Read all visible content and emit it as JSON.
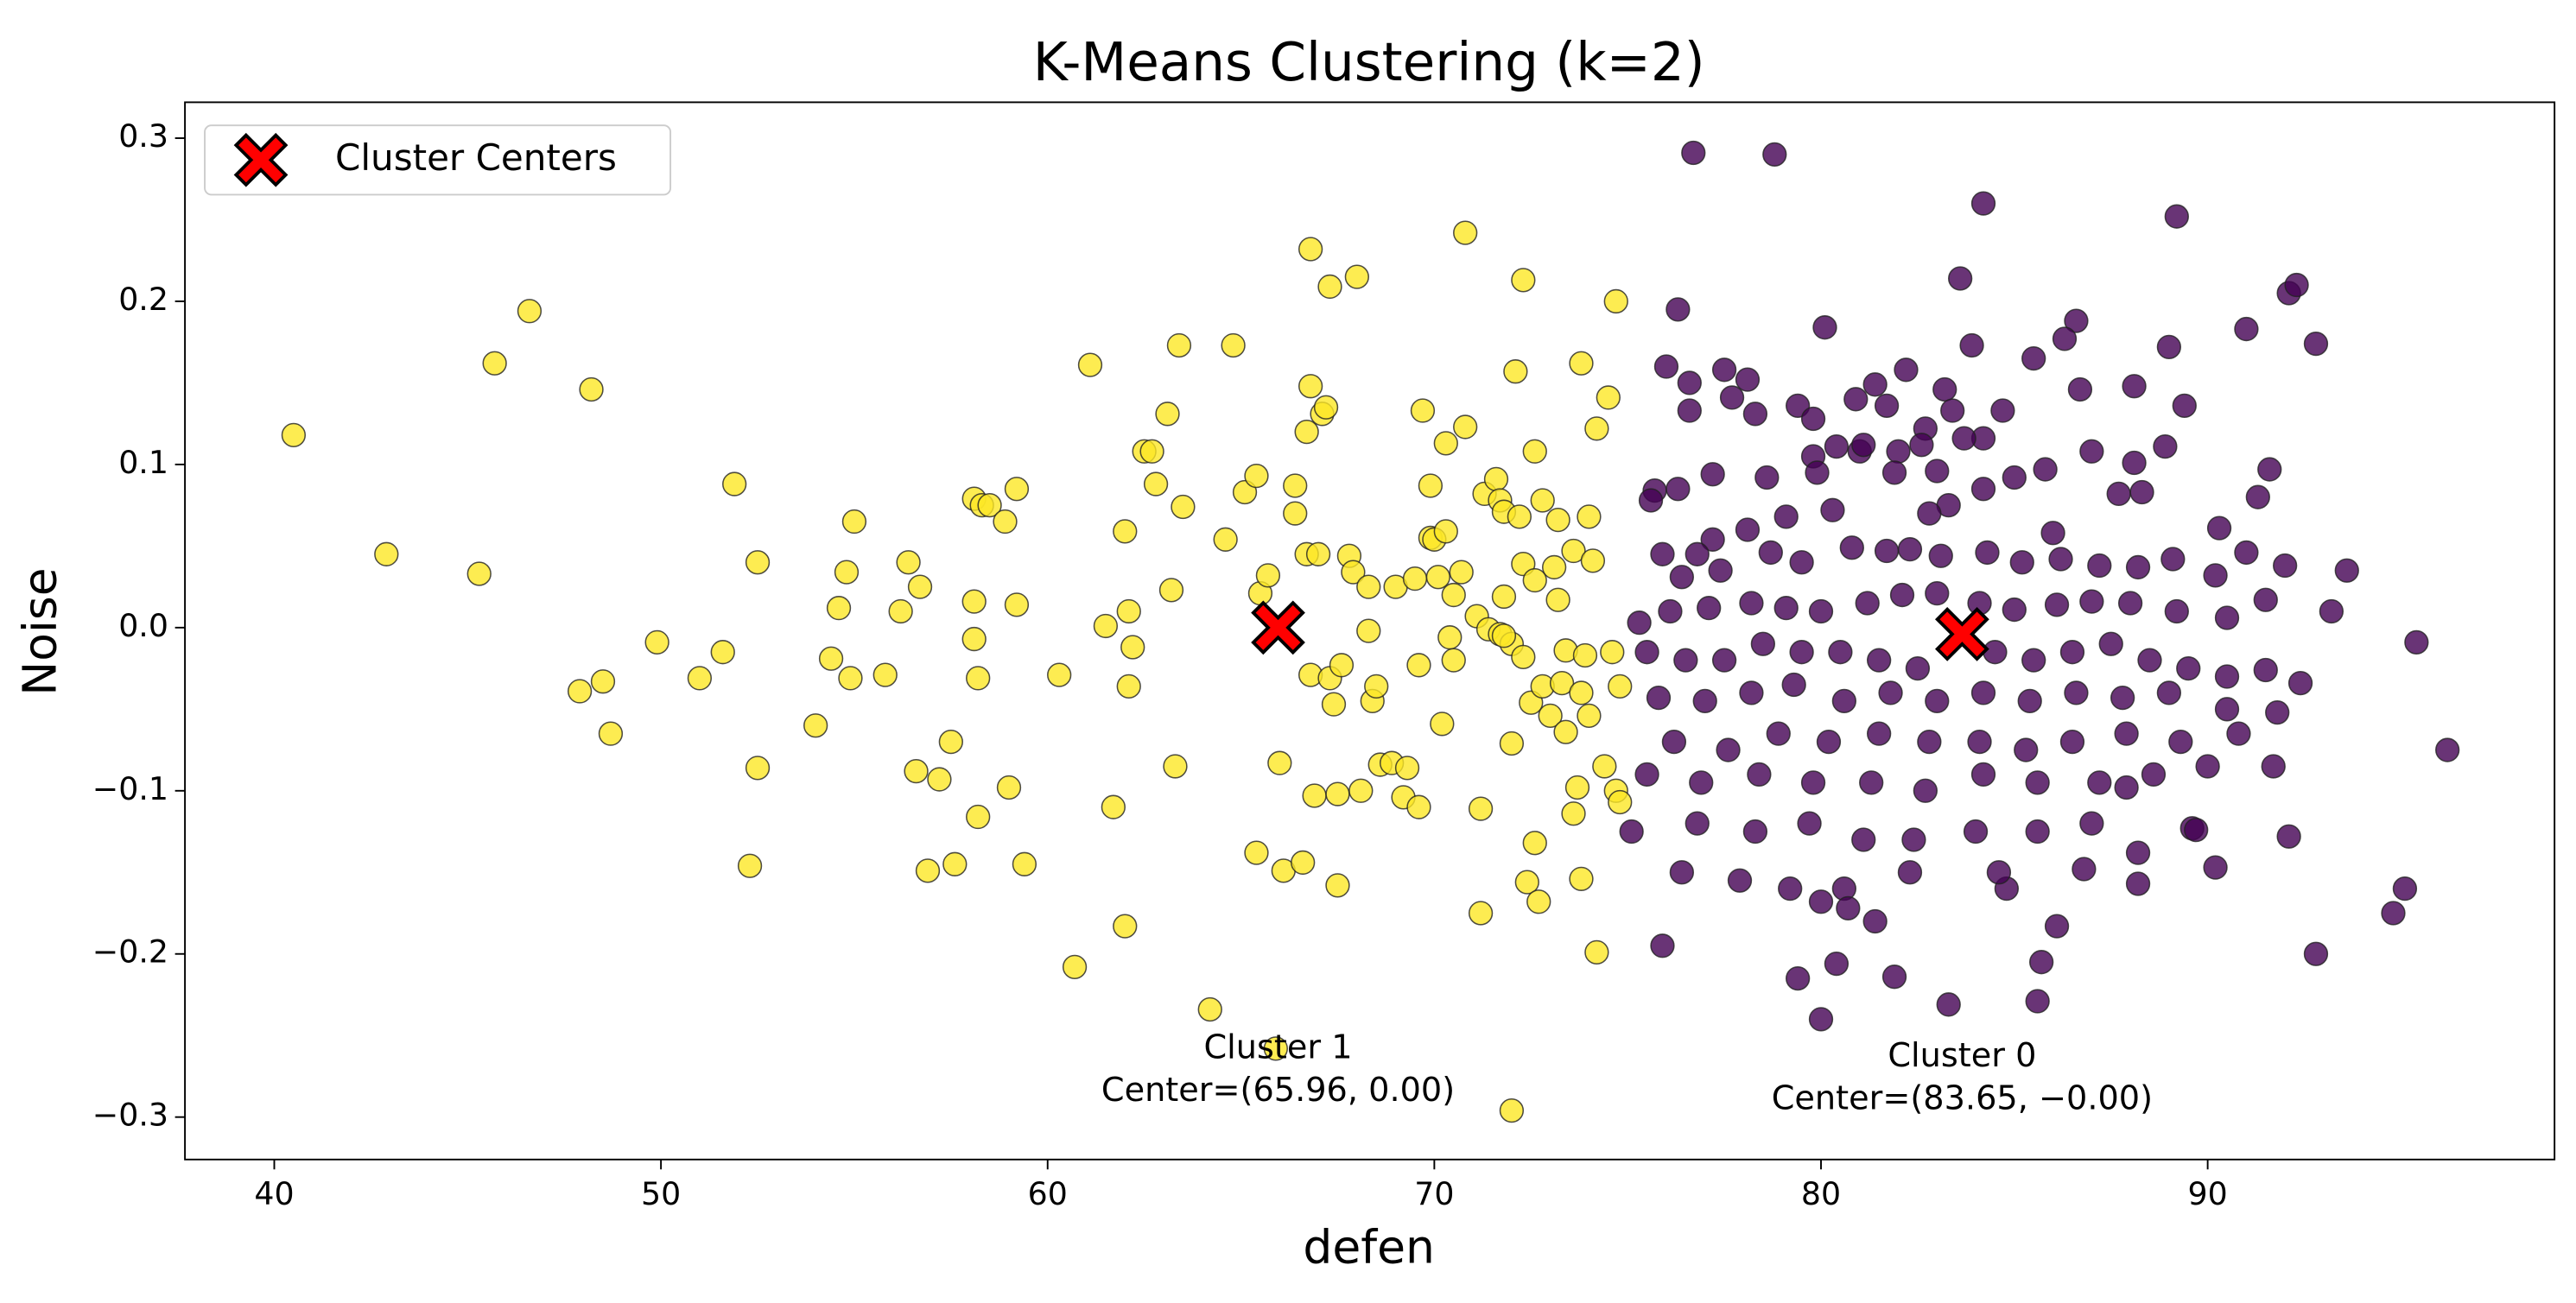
{
  "chart_data": {
    "type": "scatter",
    "title": "K-Means Clustering (k=2)",
    "x_label": "defen",
    "y_label": "Noise",
    "xlim": [
      37.69,
      98.97
    ],
    "ylim": [
      -0.326,
      0.322
    ],
    "xticks": [
      40,
      50,
      60,
      70,
      80,
      90
    ],
    "yticks": [
      {
        "value": -0.3,
        "label": "−0.3"
      },
      {
        "value": -0.2,
        "label": "−0.2"
      },
      {
        "value": -0.1,
        "label": "−0.1"
      },
      {
        "value": 0.0,
        "label": "0.0"
      },
      0.1,
      0.2,
      0.3
    ],
    "legend": "upper left",
    "annotations": [
      [
        "Cluster 1",
        "Center=(65.96, 0.00)"
      ],
      [
        "Cluster 0",
        "Center=(83.65, −0.00)"
      ]
    ],
    "series": [
      {
        "color": "#fde725",
        "x": [
          40.5,
          42.9,
          45.3,
          45.7,
          46.6,
          48.2,
          47.9,
          48.5,
          48.7,
          49.9,
          51.0,
          51.6,
          51.9,
          52.5,
          52.5,
          52.3,
          54.0,
          54.4,
          54.6,
          54.8,
          54.9,
          55.0,
          55.8,
          56.2,
          56.4,
          56.7,
          56.6,
          56.9,
          57.2,
          57.5,
          57.6,
          58.1,
          58.3,
          58.5,
          58.1,
          58.1,
          58.2,
          58.2,
          58.9,
          59.2,
          59.2,
          59.0,
          59.4,
          60.3,
          60.7,
          61.1,
          61.5,
          61.7,
          62.0,
          62.1,
          62.1,
          62.2,
          62.0,
          62.5,
          62.7,
          62.8,
          63.1,
          63.2,
          63.4,
          63.3,
          63.5,
          64.2,
          64.6,
          64.8,
          65.1,
          65.4,
          65.5,
          65.4,
          65.7,
          65.9,
          66.0,
          66.1,
          66.4,
          66.4,
          66.6,
          66.7,
          66.8,
          66.8,
          66.7,
          66.8,
          66.9,
          67.0,
          67.1,
          67.2,
          67.3,
          67.3,
          67.4,
          67.5,
          67.5,
          67.6,
          67.8,
          67.9,
          68.0,
          68.1,
          68.3,
          68.3,
          68.4,
          68.5,
          68.6,
          68.9,
          69.0,
          69.2,
          69.3,
          69.5,
          69.6,
          69.6,
          69.7,
          69.9,
          69.9,
          70.0,
          70.1,
          70.2,
          70.3,
          70.3,
          70.4,
          70.5,
          70.5,
          70.7,
          70.8,
          70.8,
          71.1,
          71.2,
          71.2,
          71.3,
          71.4,
          71.6,
          71.7,
          71.8,
          71.7,
          71.8,
          72.0,
          72.0,
          72.1,
          72.2,
          72.3,
          72.3,
          72.3,
          72.4,
          72.5,
          72.6,
          72.6,
          72.6,
          72.7,
          72.8,
          72.8,
          73.0,
          73.1,
          73.2,
          73.2,
          73.3,
          73.4,
          73.4,
          73.6,
          73.6,
          73.7,
          73.8,
          73.8,
          73.8,
          73.9,
          74.0,
          74.0,
          74.1,
          74.2,
          74.2,
          74.4,
          74.5,
          74.6,
          74.7,
          74.7,
          74.8,
          74.8,
          72.0,
          71.8
        ],
        "values": [
          0.118,
          0.045,
          0.033,
          0.162,
          0.194,
          0.146,
          -0.039,
          -0.033,
          -0.065,
          -0.009,
          -0.031,
          -0.015,
          0.088,
          0.04,
          -0.086,
          -0.146,
          -0.06,
          -0.019,
          0.012,
          0.034,
          -0.031,
          0.065,
          -0.029,
          0.01,
          0.04,
          0.025,
          -0.088,
          -0.149,
          -0.093,
          -0.07,
          -0.145,
          0.079,
          0.075,
          0.075,
          0.016,
          -0.007,
          -0.031,
          -0.116,
          0.065,
          0.085,
          0.014,
          -0.098,
          -0.145,
          -0.029,
          -0.208,
          0.161,
          0.001,
          -0.11,
          0.059,
          0.01,
          -0.036,
          -0.012,
          -0.183,
          0.108,
          0.108,
          0.088,
          0.131,
          0.023,
          0.173,
          -0.085,
          0.074,
          -0.234,
          0.054,
          0.173,
          0.083,
          0.093,
          0.021,
          -0.138,
          0.032,
          -0.258,
          -0.083,
          -0.149,
          0.087,
          0.07,
          -0.144,
          0.12,
          0.148,
          0.232,
          0.045,
          -0.029,
          -0.103,
          0.045,
          0.131,
          0.135,
          0.209,
          -0.031,
          -0.047,
          -0.102,
          -0.158,
          -0.023,
          0.044,
          0.034,
          0.215,
          -0.1,
          0.025,
          -0.002,
          -0.045,
          -0.036,
          -0.084,
          -0.083,
          0.025,
          -0.104,
          -0.086,
          0.03,
          -0.023,
          -0.11,
          0.133,
          0.087,
          0.055,
          0.054,
          0.031,
          -0.059,
          0.113,
          0.059,
          -0.006,
          0.02,
          -0.02,
          0.034,
          0.242,
          0.123,
          0.007,
          -0.111,
          -0.175,
          0.082,
          -0.001,
          0.091,
          0.078,
          0.019,
          -0.004,
          0.071,
          -0.071,
          -0.01,
          0.157,
          0.068,
          0.039,
          -0.018,
          0.213,
          -0.156,
          -0.046,
          0.108,
          0.029,
          -0.132,
          -0.168,
          0.078,
          -0.036,
          -0.054,
          0.037,
          0.017,
          0.066,
          -0.034,
          -0.014,
          -0.064,
          -0.114,
          0.047,
          -0.098,
          0.162,
          -0.04,
          -0.154,
          -0.017,
          -0.054,
          0.068,
          0.041,
          0.122,
          -0.199,
          -0.085,
          0.141,
          -0.015,
          0.2,
          -0.1,
          -0.036,
          -0.107,
          -0.296,
          -0.005
        ]
      },
      {
        "color": "#440154",
        "x": [
          76.7,
          78.8,
          84.2,
          89.2,
          83.6,
          76.3,
          80.1,
          91.0,
          92.1,
          92.3,
          92.8,
          89.0,
          86.6,
          86.3,
          83.9,
          85.5,
          76.0,
          77.5,
          76.6,
          78.1,
          82.2,
          86.7,
          88.1,
          81.4,
          83.2,
          79.4,
          80.9,
          81.7,
          89.4,
          76.6,
          77.7,
          78.3,
          79.8,
          84.7,
          83.4,
          82.7,
          84.2,
          83.7,
          85.8,
          87.0,
          88.1,
          88.9,
          80.4,
          81.0,
          82.0,
          79.8,
          82.6,
          81.1,
          77.2,
          78.6,
          75.7,
          75.6,
          76.3,
          79.9,
          81.9,
          83.0,
          85.0,
          87.7,
          88.3,
          90.3,
          91.3,
          91.6,
          86.0,
          84.2,
          83.3,
          82.8,
          80.3,
          79.1,
          78.1,
          77.2,
          76.8,
          75.9,
          76.4,
          77.4,
          78.7,
          79.5,
          80.8,
          81.7,
          82.3,
          83.1,
          84.3,
          85.2,
          86.2,
          87.2,
          88.2,
          89.1,
          90.2,
          91.0,
          92.0,
          93.6,
          75.3,
          76.1,
          77.1,
          78.2,
          79.1,
          80.0,
          81.2,
          82.1,
          83.0,
          84.1,
          85.0,
          86.1,
          87.0,
          88.0,
          89.2,
          90.5,
          91.5,
          93.2,
          95.4,
          75.5,
          76.5,
          77.5,
          78.5,
          79.5,
          80.5,
          81.5,
          82.5,
          84.5,
          85.5,
          86.5,
          87.5,
          88.5,
          89.5,
          90.5,
          91.5,
          92.4,
          75.8,
          77.0,
          78.2,
          79.3,
          80.6,
          81.8,
          83.0,
          84.2,
          85.4,
          86.6,
          87.8,
          89.0,
          90.5,
          91.8,
          76.2,
          77.6,
          78.9,
          80.2,
          81.5,
          82.8,
          84.1,
          85.3,
          86.5,
          87.9,
          89.3,
          90.8,
          75.5,
          76.9,
          78.4,
          79.8,
          81.3,
          82.7,
          84.2,
          85.6,
          87.2,
          88.6,
          90.0,
          91.7,
          96.2,
          75.1,
          76.8,
          78.3,
          79.7,
          81.1,
          82.4,
          84.0,
          85.6,
          87.0,
          88.2,
          89.6,
          92.1,
          76.4,
          77.9,
          79.2,
          80.6,
          82.3,
          84.8,
          86.8,
          88.2,
          95.1,
          75.9,
          80.0,
          80.7,
          81.4,
          84.6,
          86.1,
          79.4,
          80.4,
          81.9,
          85.7,
          94.8,
          92.8,
          80.0,
          83.3,
          85.6,
          87.9,
          89.7,
          90.2
        ],
        "values": [
          0.291,
          0.29,
          0.26,
          0.252,
          0.214,
          0.195,
          0.184,
          0.183,
          0.205,
          0.21,
          0.174,
          0.172,
          0.188,
          0.177,
          0.173,
          0.165,
          0.16,
          0.158,
          0.15,
          0.152,
          0.158,
          0.146,
          0.148,
          0.149,
          0.146,
          0.136,
          0.14,
          0.136,
          0.136,
          0.133,
          0.141,
          0.131,
          0.128,
          0.133,
          0.133,
          0.122,
          0.116,
          0.116,
          0.097,
          0.108,
          0.101,
          0.111,
          0.111,
          0.108,
          0.108,
          0.105,
          0.112,
          0.112,
          0.094,
          0.092,
          0.084,
          0.078,
          0.085,
          0.095,
          0.095,
          0.096,
          0.092,
          0.082,
          0.083,
          0.061,
          0.08,
          0.097,
          0.058,
          0.085,
          0.075,
          0.07,
          0.072,
          0.068,
          0.06,
          0.054,
          0.045,
          0.045,
          0.031,
          0.035,
          0.046,
          0.04,
          0.049,
          0.047,
          0.048,
          0.044,
          0.046,
          0.04,
          0.042,
          0.038,
          0.037,
          0.042,
          0.032,
          0.046,
          0.038,
          0.035,
          0.003,
          0.01,
          0.012,
          0.015,
          0.012,
          0.01,
          0.015,
          0.02,
          0.021,
          0.015,
          0.011,
          0.014,
          0.016,
          0.015,
          0.01,
          0.006,
          0.017,
          0.01,
          -0.009,
          -0.015,
          -0.02,
          -0.02,
          -0.01,
          -0.015,
          -0.015,
          -0.02,
          -0.025,
          -0.015,
          -0.02,
          -0.015,
          -0.01,
          -0.02,
          -0.025,
          -0.03,
          -0.026,
          -0.034,
          -0.043,
          -0.045,
          -0.04,
          -0.035,
          -0.045,
          -0.04,
          -0.045,
          -0.04,
          -0.045,
          -0.04,
          -0.043,
          -0.04,
          -0.05,
          -0.052,
          -0.07,
          -0.075,
          -0.065,
          -0.07,
          -0.065,
          -0.07,
          -0.07,
          -0.075,
          -0.07,
          -0.065,
          -0.07,
          -0.065,
          -0.09,
          -0.095,
          -0.09,
          -0.095,
          -0.095,
          -0.1,
          -0.09,
          -0.095,
          -0.095,
          -0.09,
          -0.085,
          -0.085,
          -0.075,
          -0.125,
          -0.12,
          -0.125,
          -0.12,
          -0.13,
          -0.13,
          -0.125,
          -0.125,
          -0.12,
          -0.138,
          -0.123,
          -0.128,
          -0.15,
          -0.155,
          -0.16,
          -0.16,
          -0.15,
          -0.16,
          -0.148,
          -0.157,
          -0.16,
          -0.195,
          -0.168,
          -0.172,
          -0.18,
          -0.15,
          -0.183,
          -0.215,
          -0.206,
          -0.214,
          -0.205,
          -0.175,
          -0.2,
          -0.24,
          -0.231,
          -0.229,
          -0.098,
          -0.124,
          -0.147
        ]
      },
      {
        "name": "Cluster Centers",
        "color": "#ff0000",
        "marker": "X",
        "x": [
          65.96,
          83.65
        ],
        "values": [
          0.0,
          -0.004
        ]
      }
    ]
  }
}
